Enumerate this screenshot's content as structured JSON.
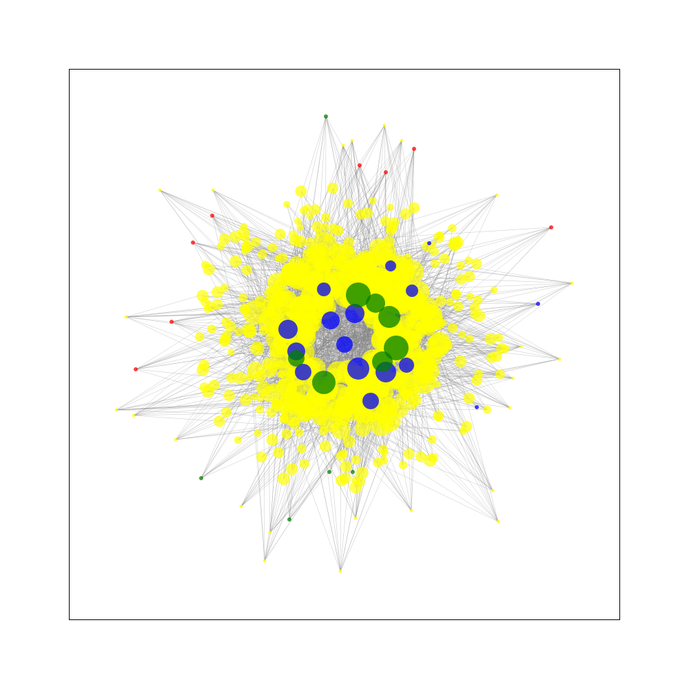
{
  "graph": {
    "type": "network",
    "layout": "radial-cluster",
    "edge_color": "#808080",
    "node_colors": {
      "yellow": "#ffff00",
      "blue": "#0000ff",
      "green": "#008000",
      "red": "#ff0000"
    },
    "node_counts": {
      "yellow": 620,
      "blue": 20,
      "green": 14,
      "red": 9
    },
    "axes": {
      "visible": false,
      "ticks": false,
      "title": ""
    }
  }
}
